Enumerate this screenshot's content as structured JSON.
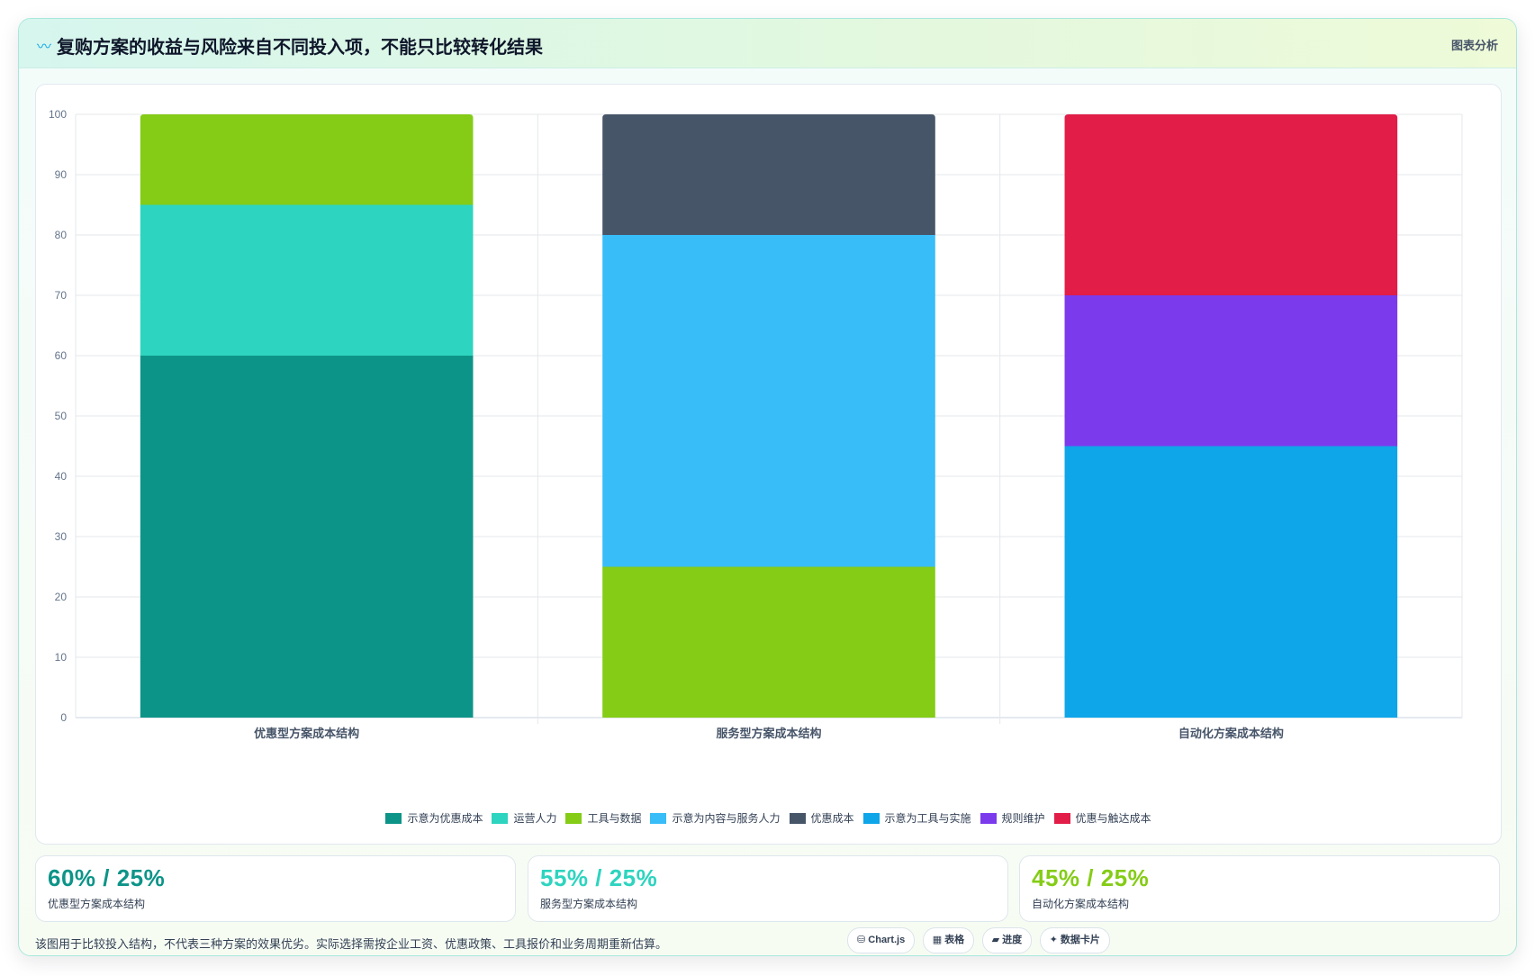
{
  "header": {
    "icon": "wave-icon",
    "title": "复购方案的收益与风险来自不同投入项，不能只比较转化结果",
    "tag": "图表分析"
  },
  "chart_data": {
    "type": "bar",
    "stacked": true,
    "categories": [
      "优惠型方案成本结构",
      "服务型方案成本结构",
      "自动化方案成本结构"
    ],
    "ylim": [
      0,
      100
    ],
    "yticks": [
      0,
      10,
      20,
      30,
      40,
      50,
      60,
      70,
      80,
      90,
      100
    ],
    "grid": true,
    "legend_position": "bottom",
    "series": [
      {
        "name": "示意为优惠成本",
        "color": "#0d9488",
        "values": [
          60,
          0,
          0
        ]
      },
      {
        "name": "运营人力",
        "color": "#2dd4bf",
        "values": [
          25,
          0,
          0
        ]
      },
      {
        "name": "工具与数据",
        "color": "#84cc16",
        "values": [
          15,
          25,
          0
        ]
      },
      {
        "name": "示意为内容与服务人力",
        "color": "#38bdf8",
        "values": [
          0,
          55,
          0
        ]
      },
      {
        "name": "优惠成本",
        "color": "#475569",
        "values": [
          0,
          20,
          0
        ]
      },
      {
        "name": "示意为工具与实施",
        "color": "#0ea5e9",
        "values": [
          0,
          0,
          45
        ]
      },
      {
        "name": "规则维护",
        "color": "#7c3aed",
        "values": [
          0,
          0,
          25
        ]
      },
      {
        "name": "优惠与触达成本",
        "color": "#e11d48",
        "values": [
          0,
          0,
          30
        ]
      }
    ]
  },
  "stats": [
    {
      "value": "60% / 25%",
      "label": "优惠型方案成本结构",
      "color": "#0d9488"
    },
    {
      "value": "55% / 25%",
      "label": "服务型方案成本结构",
      "color": "#2dd4bf"
    },
    {
      "value": "45% / 25%",
      "label": "自动化方案成本结构",
      "color": "#84cc16"
    }
  ],
  "footnote": "该图用于比较投入结构，不代表三种方案的效果优劣。实际选择需按企业工资、优惠政策、工具报价和业务周期重新估算。",
  "pills": [
    {
      "icon": "database-icon",
      "glyph": "⛁",
      "label": "Chart.js"
    },
    {
      "icon": "table-icon",
      "glyph": "▦",
      "label": "表格"
    },
    {
      "icon": "progress-icon",
      "glyph": "▰",
      "label": "进度"
    },
    {
      "icon": "sparkle-icon",
      "glyph": "✦",
      "label": "数据卡片"
    }
  ]
}
